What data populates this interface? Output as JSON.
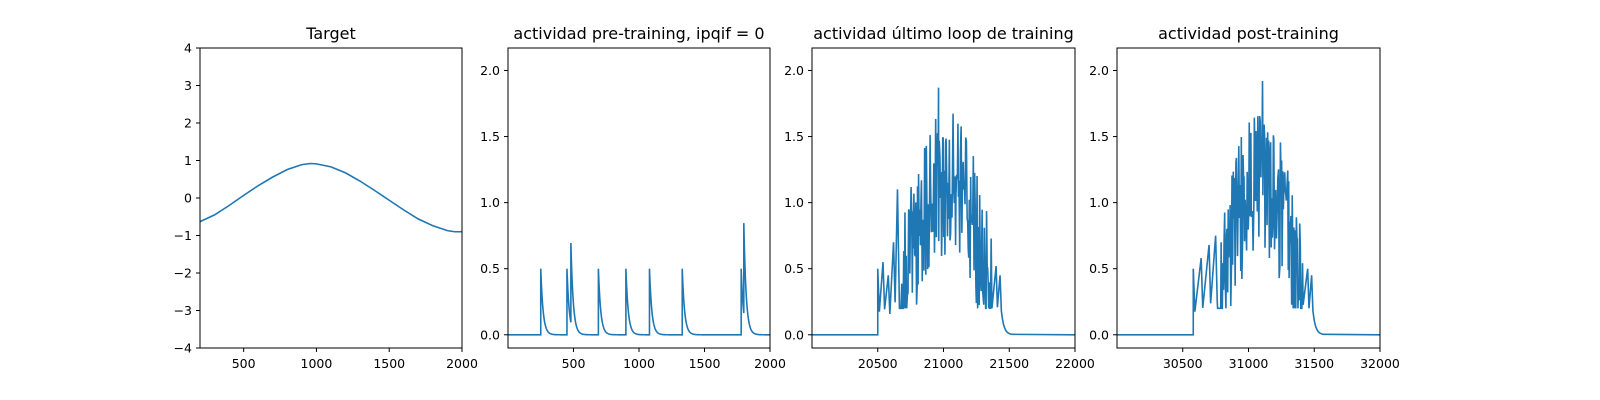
{
  "chart_data": [
    {
      "type": "line",
      "title": "Target",
      "xlabel": "",
      "ylabel": "",
      "xlim": [
        200,
        2000
      ],
      "ylim": [
        -4,
        4
      ],
      "xticks": [
        500,
        1000,
        1500,
        2000
      ],
      "yticks": [
        -4,
        -3,
        -2,
        -1,
        0,
        1,
        2,
        3,
        4
      ],
      "grid": false,
      "color": "#1f77b4",
      "series": [
        {
          "x": [
            200,
            300,
            400,
            500,
            600,
            700,
            800,
            900,
            960,
            1000,
            1100,
            1200,
            1300,
            1400,
            1500,
            1600,
            1700,
            1800,
            1900,
            1950,
            2000
          ],
          "y": [
            -0.63,
            -0.45,
            -0.2,
            0.07,
            0.33,
            0.56,
            0.76,
            0.89,
            0.92,
            0.91,
            0.83,
            0.67,
            0.45,
            0.2,
            -0.06,
            -0.32,
            -0.56,
            -0.74,
            -0.87,
            -0.9,
            -0.9
          ]
        }
      ]
    },
    {
      "type": "line",
      "title": "actividad pre-training, ipqif = 0",
      "xlabel": "",
      "ylabel": "",
      "xlim": [
        0,
        2000
      ],
      "ylim": [
        -0.1,
        2.17
      ],
      "xticks": [
        500,
        1000,
        1500,
        2000
      ],
      "yticks": [
        0.0,
        0.5,
        1.0,
        1.5,
        2.0
      ],
      "ytick_labels": [
        "0.0",
        "0.5",
        "1.0",
        "1.5",
        "2.0"
      ],
      "grid": false,
      "color": "#1f77b4",
      "spikes": [
        {
          "t": 250,
          "h": 0.5
        },
        {
          "t": 450,
          "h": 0.5
        },
        {
          "t": 480,
          "h": 0.6
        },
        {
          "t": 690,
          "h": 0.5
        },
        {
          "t": 900,
          "h": 0.5
        },
        {
          "t": 1080,
          "h": 0.5
        },
        {
          "t": 1330,
          "h": 0.5
        },
        {
          "t": 1780,
          "h": 0.5
        },
        {
          "t": 1800,
          "h": 0.68
        }
      ]
    },
    {
      "type": "line",
      "title": "actividad último loop de training",
      "xlabel": "",
      "ylabel": "",
      "xlim": [
        20000,
        22000
      ],
      "ylim": [
        -0.1,
        2.17
      ],
      "xticks": [
        20500,
        21000,
        21500,
        22000
      ],
      "yticks": [
        0.0,
        0.5,
        1.0,
        1.5,
        2.0
      ],
      "ytick_labels": [
        "0.0",
        "0.5",
        "1.0",
        "1.5",
        "2.0"
      ],
      "grid": false,
      "color": "#1f77b4",
      "activity_start": 20500,
      "activity_end": 21430,
      "peak": 1.87,
      "onset_points": [
        [
          20500,
          0.5
        ],
        [
          20540,
          0.55
        ],
        [
          20580,
          0.45
        ],
        [
          20620,
          0.7
        ],
        [
          20650,
          1.1
        ]
      ],
      "tail_points": [
        [
          21400,
          0.52
        ],
        [
          21430,
          0.45
        ]
      ]
    },
    {
      "type": "line",
      "title": "actividad post-training",
      "xlabel": "",
      "ylabel": "",
      "xlim": [
        30000,
        32000
      ],
      "ylim": [
        -0.1,
        2.17
      ],
      "xticks": [
        30500,
        31000,
        31500,
        32000
      ],
      "yticks": [
        0.0,
        0.5,
        1.0,
        1.5,
        2.0
      ],
      "ytick_labels": [
        "0.0",
        "0.5",
        "1.0",
        "1.5",
        "2.0"
      ],
      "grid": false,
      "color": "#1f77b4",
      "activity_start": 30580,
      "activity_end": 31480,
      "peak": 1.92,
      "onset_points": [
        [
          30580,
          0.5
        ],
        [
          30640,
          0.58
        ],
        [
          30700,
          0.68
        ],
        [
          30750,
          0.75
        ]
      ],
      "tail_points": [
        [
          31450,
          0.5
        ],
        [
          31480,
          0.45
        ]
      ]
    }
  ]
}
